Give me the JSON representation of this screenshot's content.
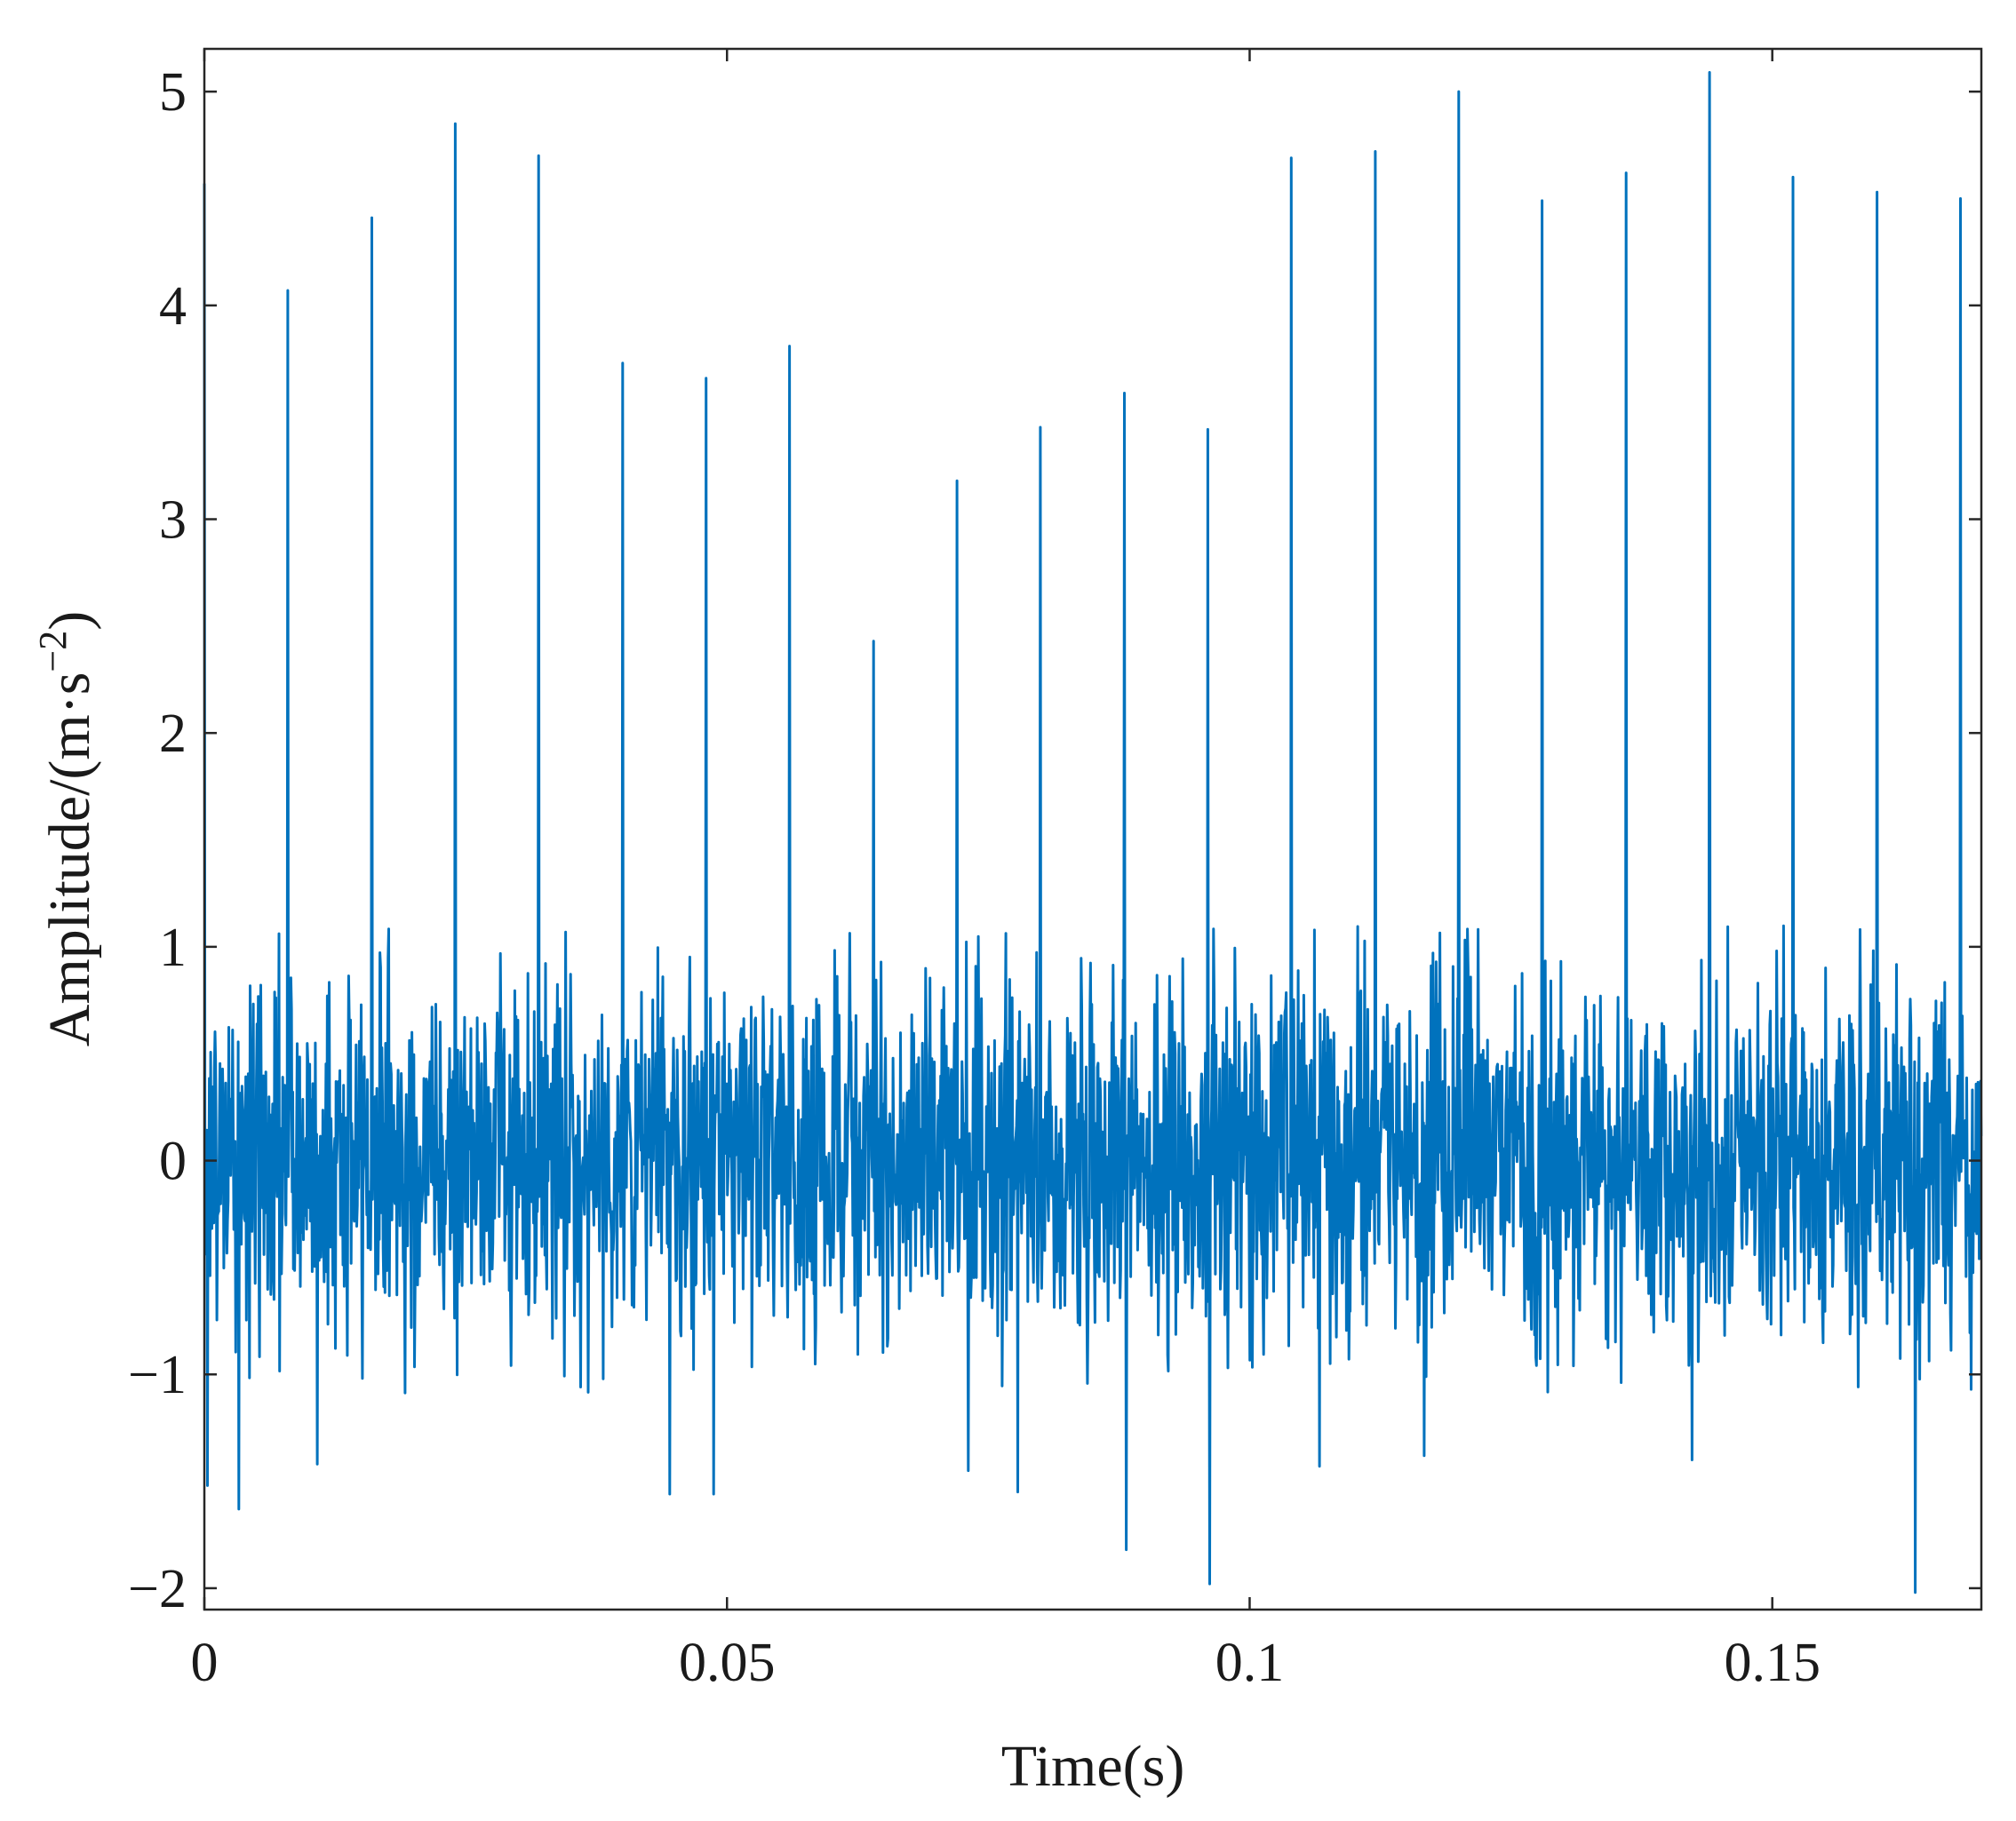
{
  "chart_data": {
    "type": "line",
    "title": "",
    "xlabel": "Time(s)",
    "ylabel_main": "Amplitude/(m·s",
    "ylabel_sup": "−2",
    "ylabel_close": ")",
    "xlim": [
      0,
      0.17
    ],
    "ylim": [
      -2.1,
      5.2
    ],
    "xticks": [
      0,
      0.05,
      0.1,
      0.15
    ],
    "xtick_labels": [
      "0",
      "0.05",
      "0.1",
      "0.15"
    ],
    "yticks": [
      -2,
      -1,
      0,
      1,
      2,
      3,
      4,
      5
    ],
    "ytick_labels": [
      "−2",
      "−1",
      "0",
      "1",
      "2",
      "3",
      "4",
      "5"
    ],
    "grid": false,
    "legend": "none",
    "series_color": "#0072BD",
    "sample_step": 6e-05,
    "impulse_peaks": [
      {
        "x": 0.0,
        "y": 4.57
      },
      {
        "x": 0.008,
        "y": 4.07
      },
      {
        "x": 0.016,
        "y": 4.41
      },
      {
        "x": 0.024,
        "y": 4.85
      },
      {
        "x": 0.032,
        "y": 4.7
      },
      {
        "x": 0.04,
        "y": 3.73
      },
      {
        "x": 0.048,
        "y": 3.66
      },
      {
        "x": 0.056,
        "y": 3.81
      },
      {
        "x": 0.064,
        "y": 2.43
      },
      {
        "x": 0.072,
        "y": 3.18
      },
      {
        "x": 0.08,
        "y": 3.43
      },
      {
        "x": 0.088,
        "y": 3.59
      },
      {
        "x": 0.096,
        "y": 3.42
      },
      {
        "x": 0.104,
        "y": 4.69
      },
      {
        "x": 0.112,
        "y": 4.72
      },
      {
        "x": 0.12,
        "y": 5.0
      },
      {
        "x": 0.128,
        "y": 4.49
      },
      {
        "x": 0.136,
        "y": 4.62
      },
      {
        "x": 0.144,
        "y": 5.09
      },
      {
        "x": 0.152,
        "y": 4.6
      },
      {
        "x": 0.16,
        "y": 4.53
      },
      {
        "x": 0.168,
        "y": 4.5
      }
    ],
    "notable_troughs": [
      {
        "x": 0.0003,
        "y": -1.52
      },
      {
        "x": 0.0033,
        "y": -1.63
      },
      {
        "x": 0.0108,
        "y": -1.42
      },
      {
        "x": 0.0445,
        "y": -1.56
      },
      {
        "x": 0.0487,
        "y": -1.56
      },
      {
        "x": 0.0731,
        "y": -1.45
      },
      {
        "x": 0.0778,
        "y": -1.55
      },
      {
        "x": 0.0882,
        "y": -1.82
      },
      {
        "x": 0.0962,
        "y": -1.98
      },
      {
        "x": 0.1067,
        "y": -1.43
      },
      {
        "x": 0.1167,
        "y": -1.38
      },
      {
        "x": 0.1423,
        "y": -1.4
      },
      {
        "x": 0.1637,
        "y": -2.02
      },
      {
        "x": 0.169,
        "y": -1.07
      }
    ],
    "noise_band": [
      -1.1,
      1.1
    ]
  }
}
